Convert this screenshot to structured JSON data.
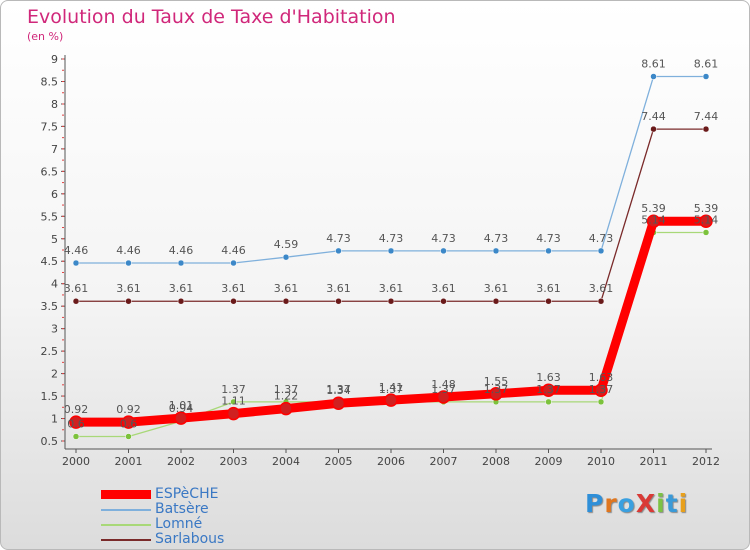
{
  "title": "Evolution du Taux de Taxe d'Habitation",
  "subtitle": "(en %)",
  "logo": "ProXiti",
  "logo_colors": [
    "#2f8fd8",
    "#e0761e",
    "#3aa0e0",
    "#d93a36",
    "#7cc244",
    "#3a9ad8",
    "#e8a01c"
  ],
  "chart_data": {
    "type": "line",
    "title": "Evolution du Taux de Taxe d'Habitation",
    "ylabel": "(en %)",
    "x": [
      "2000",
      "2001",
      "2002",
      "2003",
      "2004",
      "2005",
      "2006",
      "2007",
      "2008",
      "2009",
      "2010",
      "2011",
      "2012"
    ],
    "ylim": [
      0.5,
      9
    ],
    "yticks": [
      "0.5",
      "1",
      "1.5",
      "2",
      "2.5",
      "3",
      "3.5",
      "4",
      "4.5",
      "5",
      "5.5",
      "6",
      "6.5",
      "7",
      "7.5",
      "8",
      "8.5",
      "9"
    ],
    "grid": false,
    "legend_position": "bottom-left",
    "series": [
      {
        "name": "ESPèCHE",
        "color": "#ff0000",
        "marker": "#d02020",
        "values": [
          0.92,
          0.92,
          1.01,
          1.11,
          1.22,
          1.34,
          1.41,
          1.48,
          1.55,
          1.63,
          1.63,
          5.39,
          5.39
        ],
        "labels": [
          "0.92",
          "0.92",
          "1.01",
          "1.11",
          "1.22",
          "1.34",
          "1.41",
          "1.48",
          "1.55",
          "1.63",
          "1.63",
          "5.39",
          "5.39"
        ]
      },
      {
        "name": "Batsère",
        "color": "#7fb0dc",
        "marker": "#3c88c8",
        "values": [
          4.46,
          4.46,
          4.46,
          4.46,
          4.59,
          4.73,
          4.73,
          4.73,
          4.73,
          4.73,
          4.73,
          8.61,
          8.61
        ],
        "labels": [
          "4.46",
          "4.46",
          "4.46",
          "4.46",
          "4.59",
          "4.73",
          "4.73",
          "4.73",
          "4.73",
          "4.73",
          "4.73",
          "8.61",
          "8.61"
        ]
      },
      {
        "name": "Lomné",
        "color": "#a8d878",
        "marker": "#7cc23c",
        "values": [
          0.6,
          0.6,
          0.94,
          1.37,
          1.37,
          1.37,
          1.37,
          1.37,
          1.37,
          1.37,
          1.37,
          5.14,
          5.14
        ],
        "labels": [
          "0.6",
          "0.6",
          "0.94",
          "1.37",
          "1.37",
          "1.37",
          "1.37",
          "1.37",
          "1.37",
          "1.37",
          "1.37",
          "5.14",
          "5.14"
        ]
      },
      {
        "name": "Sarlabous",
        "color": "#7a2a2a",
        "marker": "#6a1a1a",
        "values": [
          3.61,
          3.61,
          3.61,
          3.61,
          3.61,
          3.61,
          3.61,
          3.61,
          3.61,
          3.61,
          3.61,
          7.44,
          7.44
        ],
        "labels": [
          "3.61",
          "3.61",
          "3.61",
          "3.61",
          "3.61",
          "3.61",
          "3.61",
          "3.61",
          "3.61",
          "3.61",
          "3.61",
          "7.44",
          "7.44"
        ]
      }
    ]
  }
}
